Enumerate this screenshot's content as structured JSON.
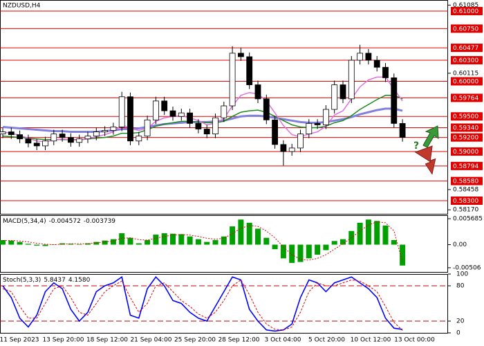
{
  "chart_data": [
    {
      "type": "candlestick",
      "title": "NZDUSD,H4",
      "open": [
        0.5925,
        0.5928,
        0.5924,
        0.5918,
        0.5912,
        0.5908,
        0.5915,
        0.5925,
        0.592,
        0.5913,
        0.5918,
        0.5922,
        0.5928,
        0.593,
        0.5935,
        0.5978,
        0.5915,
        0.5922,
        0.5945,
        0.5972,
        0.5958,
        0.595,
        0.5955,
        0.594,
        0.5932,
        0.5925,
        0.5948,
        0.5965,
        0.604,
        0.6035,
        0.5995,
        0.5975,
        0.5945,
        0.591,
        0.59,
        0.5905,
        0.5925,
        0.594,
        0.5938,
        0.596,
        0.5995,
        0.5975,
        0.603,
        0.604,
        0.603,
        0.602,
        0.6005,
        0.594
      ],
      "high": [
        0.5934,
        0.5934,
        0.593,
        0.5924,
        0.5918,
        0.5921,
        0.5931,
        0.5931,
        0.5926,
        0.5924,
        0.5928,
        0.5934,
        0.5936,
        0.5941,
        0.5985,
        0.5984,
        0.5928,
        0.5951,
        0.5978,
        0.5978,
        0.5964,
        0.5961,
        0.5961,
        0.5946,
        0.5938,
        0.5954,
        0.5971,
        0.605,
        0.6048,
        0.6041,
        0.6001,
        0.5981,
        0.5951,
        0.5916,
        0.5911,
        0.5931,
        0.5946,
        0.5946,
        0.5966,
        0.6001,
        0.6001,
        0.6036,
        0.6052,
        0.6046,
        0.6036,
        0.6026,
        0.6011,
        0.5946
      ],
      "low": [
        0.5919,
        0.5918,
        0.5912,
        0.5906,
        0.5902,
        0.5902,
        0.5909,
        0.5914,
        0.5907,
        0.5907,
        0.5912,
        0.5916,
        0.5922,
        0.5924,
        0.5929,
        0.5909,
        0.5909,
        0.5916,
        0.5939,
        0.5952,
        0.5944,
        0.5944,
        0.5934,
        0.5926,
        0.5919,
        0.5919,
        0.5942,
        0.5959,
        0.6029,
        0.5989,
        0.5969,
        0.5939,
        0.5904,
        0.588,
        0.5894,
        0.5899,
        0.5919,
        0.5932,
        0.5932,
        0.5954,
        0.5969,
        0.5969,
        0.6024,
        0.6024,
        0.6014,
        0.5999,
        0.5934,
        0.5914
      ],
      "close": [
        0.5928,
        0.5924,
        0.5918,
        0.5912,
        0.5908,
        0.5915,
        0.5925,
        0.592,
        0.5913,
        0.5918,
        0.5922,
        0.5928,
        0.593,
        0.5935,
        0.5978,
        0.5915,
        0.5922,
        0.5945,
        0.5972,
        0.5958,
        0.595,
        0.5955,
        0.594,
        0.5932,
        0.5925,
        0.5948,
        0.5965,
        0.604,
        0.6035,
        0.5995,
        0.5975,
        0.5945,
        0.591,
        0.59,
        0.5905,
        0.5925,
        0.594,
        0.5938,
        0.596,
        0.5995,
        0.5975,
        0.603,
        0.604,
        0.603,
        0.602,
        0.6005,
        0.594,
        0.592
      ],
      "overlays": [
        {
          "color": "#8080e0",
          "values": [
            0.5935,
            0.5934,
            0.5933,
            0.5932,
            0.5931,
            0.593,
            0.5929,
            0.5929,
            0.5928,
            0.5928,
            0.5928,
            0.5928,
            0.5929,
            0.593,
            0.5932,
            0.5932,
            0.5933,
            0.5935,
            0.5937,
            0.5939,
            0.594,
            0.5941,
            0.5942,
            0.5942,
            0.5942,
            0.5943,
            0.5944,
            0.5947,
            0.595,
            0.5951,
            0.5951,
            0.595,
            0.5948,
            0.5946,
            0.5944,
            0.5942,
            0.5941,
            0.5941,
            0.5942,
            0.5944,
            0.5946,
            0.5949,
            0.5953,
            0.5956,
            0.5959,
            0.5961,
            0.5961,
            0.5958
          ]
        },
        {
          "color": "#1a8a1a",
          "values": [
            0.5922,
            0.5921,
            0.592,
            0.5919,
            0.5918,
            0.5917,
            0.5917,
            0.5917,
            0.5917,
            0.5917,
            0.5918,
            0.5919,
            0.592,
            0.5922,
            0.5926,
            0.5926,
            0.5927,
            0.5931,
            0.5936,
            0.5939,
            0.5941,
            0.5943,
            0.5943,
            0.5942,
            0.5941,
            0.5941,
            0.5943,
            0.595,
            0.5956,
            0.5958,
            0.5959,
            0.5956,
            0.595,
            0.5944,
            0.5938,
            0.5935,
            0.5934,
            0.5934,
            0.5936,
            0.5941,
            0.5944,
            0.5951,
            0.596,
            0.5967,
            0.5974,
            0.598,
            0.598,
            0.5975
          ]
        },
        {
          "color": "#e070e0",
          "values": [
            0.5928,
            0.5926,
            0.5923,
            0.5919,
            0.5915,
            0.5914,
            0.5916,
            0.5918,
            0.5917,
            0.5916,
            0.5918,
            0.5921,
            0.5924,
            0.5928,
            0.5938,
            0.5933,
            0.593,
            0.5933,
            0.5943,
            0.5948,
            0.595,
            0.5951,
            0.5948,
            0.5944,
            0.5938,
            0.594,
            0.5947,
            0.5965,
            0.598,
            0.5984,
            0.5982,
            0.5972,
            0.5955,
            0.5937,
            0.5924,
            0.5921,
            0.5925,
            0.5928,
            0.5936,
            0.5952,
            0.5958,
            0.5975,
            0.5992,
            0.6002,
            0.6006,
            0.6006,
            0.5989,
            0.5972
          ]
        }
      ],
      "ylim": [
        0.58103,
        0.611576
      ],
      "yticks": [
        {
          "value": 0.61085,
          "label": "0.61085"
        },
        {
          "value": 0.60115,
          "label": "0.60115"
        },
        {
          "value": 0.58458,
          "label": "0.58458"
        },
        {
          "value": 0.5817,
          "label": "0.58170"
        }
      ],
      "levels": [
        {
          "value": 0.61,
          "label": "0.61000"
        },
        {
          "value": 0.6075,
          "label": "0.60750"
        },
        {
          "value": 0.60477,
          "label": "0.60477"
        },
        {
          "value": 0.603,
          "label": "0.60300"
        },
        {
          "value": 0.6,
          "label": "0.60000"
        },
        {
          "value": 0.59764,
          "label": "0.59764"
        },
        {
          "value": 0.595,
          "label": "0.59500"
        },
        {
          "value": 0.5934,
          "label": "0.59340"
        },
        {
          "value": 0.592,
          "label": "0.59200"
        },
        {
          "value": 0.59,
          "label": "0.59000"
        },
        {
          "value": 0.58794,
          "label": "0.58794"
        },
        {
          "value": 0.5858,
          "label": "0.58580"
        },
        {
          "value": 0.583,
          "label": "0.58300"
        }
      ],
      "level_color": "#e00000",
      "forecast_mark": "?"
    },
    {
      "type": "bar",
      "title": "MACD(5,34,4)",
      "header_values": [
        "-0.004572",
        "-0.003739"
      ],
      "values": [
        0.001,
        0.0009,
        0.0006,
        0.0002,
        -0.0002,
        -0.0003,
        0.0,
        0.0003,
        0.0002,
        0.0001,
        0.0003,
        0.0006,
        0.0009,
        0.0012,
        0.0025,
        0.0015,
        0.0003,
        0.001,
        0.0022,
        0.0025,
        0.0024,
        0.0023,
        0.0018,
        0.0012,
        0.0006,
        0.001,
        0.0018,
        0.004,
        0.0055,
        0.0048,
        0.0035,
        0.0015,
        -0.001,
        -0.003,
        -0.004,
        -0.0038,
        -0.003,
        -0.0022,
        -0.0012,
        0.0008,
        0.0012,
        0.003,
        0.0048,
        0.0055,
        0.0052,
        0.0042,
        0.001,
        -0.004572
      ],
      "color": "#00a000",
      "signal": {
        "color": "#e00000",
        "values": [
          0.0009,
          0.0009,
          0.0008,
          0.0006,
          0.0003,
          0.0001,
          0.0,
          0.0001,
          0.0002,
          0.0002,
          0.0002,
          0.0004,
          0.0006,
          0.0008,
          0.0014,
          0.0015,
          0.0011,
          0.001,
          0.0014,
          0.0018,
          0.0021,
          0.0022,
          0.0021,
          0.0018,
          0.0014,
          0.0012,
          0.0014,
          0.0024,
          0.0036,
          0.0042,
          0.004,
          0.003,
          0.0015,
          -0.0005,
          -0.0022,
          -0.0032,
          -0.0034,
          -0.003,
          -0.0022,
          -0.001,
          0.0002,
          0.0015,
          0.003,
          0.0043,
          0.005,
          0.0048,
          0.003,
          -0.003739
        ]
      },
      "ylim": [
        -0.006134,
        0.006452
      ],
      "yticks": [
        0.005685,
        {
          "value": 0,
          "label": "0.00"
        },
        -0.00506
      ]
    },
    {
      "type": "line",
      "title": "Stoch(5,3,3)",
      "header_values": [
        "5.8437",
        "4.1580"
      ],
      "series": [
        {
          "color": "#0000ff",
          "values": [
            80,
            60,
            25,
            10,
            30,
            70,
            85,
            75,
            40,
            20,
            35,
            70,
            80,
            85,
            95,
            30,
            25,
            75,
            95,
            80,
            55,
            50,
            35,
            25,
            20,
            45,
            70,
            95,
            90,
            40,
            20,
            5,
            3,
            5,
            15,
            60,
            90,
            85,
            70,
            85,
            90,
            95,
            85,
            75,
            60,
            25,
            8,
            5.8437
          ]
        },
        {
          "color": "#e00000",
          "dashed": true,
          "values": [
            75,
            70,
            45,
            25,
            25,
            50,
            75,
            80,
            60,
            35,
            30,
            50,
            70,
            80,
            88,
            60,
            35,
            50,
            80,
            85,
            70,
            55,
            45,
            32,
            25,
            35,
            55,
            80,
            90,
            65,
            35,
            15,
            6,
            5,
            10,
            35,
            70,
            85,
            80,
            80,
            85,
            90,
            88,
            80,
            70,
            45,
            18,
            4.158
          ]
        }
      ],
      "ylim": [
        0,
        100
      ],
      "yticks": [
        100,
        80,
        20,
        0
      ],
      "levels": [
        80,
        20
      ],
      "level_color": "#c00000",
      "x_labels": [
        "11 Sep 2023",
        "13 Sep 20:00",
        "18 Sep 12:00",
        "21 Sep 04:00",
        "25 Sep 20:00",
        "28 Sep 12:00",
        "3 Oct 04:00",
        "5 Oct 20:00",
        "10 Oct 12:00",
        "13 Oct 00:00"
      ]
    }
  ]
}
